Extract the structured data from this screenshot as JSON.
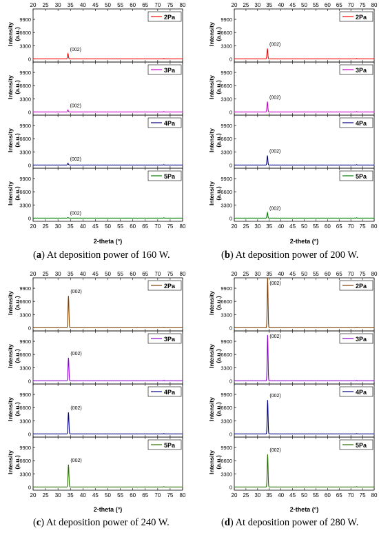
{
  "captions": [
    {
      "letter": "a",
      "text": "At deposition power of 160 W."
    },
    {
      "letter": "b",
      "text": "At deposition power of 200 W."
    },
    {
      "letter": "c",
      "text": "At deposition power of 240 W."
    },
    {
      "letter": "d",
      "text": "At deposition power of 280 W."
    }
  ],
  "chart_data": [
    {
      "type": "line",
      "id": "a",
      "xlabel": "2-theta (°)",
      "ylabel": "Intensity (a.u.)",
      "xlim": [
        20,
        80
      ],
      "ylim": [
        -800,
        12500
      ],
      "xticks": [
        20,
        25,
        30,
        35,
        40,
        45,
        50,
        55,
        60,
        65,
        70,
        75,
        80
      ],
      "yticks": [
        0,
        3300,
        6600,
        9900
      ],
      "peak_position": 34.0,
      "annotation": "(002)",
      "series": [
        {
          "name": "2Pa",
          "color": "#ff0000",
          "peak_height": 1300
        },
        {
          "name": "3Pa",
          "color": "#cc00cc",
          "peak_height": 500
        },
        {
          "name": "4Pa",
          "color": "#00007f",
          "peak_height": 450
        },
        {
          "name": "5Pa",
          "color": "#008000",
          "peak_height": 150
        }
      ]
    },
    {
      "type": "line",
      "id": "b",
      "xlabel": "2-theta (°)",
      "ylabel": "Intensity (a.u.)",
      "xlim": [
        20,
        80
      ],
      "ylim": [
        -800,
        12500
      ],
      "xticks": [
        20,
        25,
        30,
        35,
        40,
        45,
        50,
        55,
        60,
        65,
        70,
        75,
        80
      ],
      "yticks": [
        0,
        3300,
        6600,
        9900
      ],
      "peak_position": 34.2,
      "annotation": "(002)",
      "series": [
        {
          "name": "2Pa",
          "color": "#ff0000",
          "peak_height": 2600
        },
        {
          "name": "3Pa",
          "color": "#cc00cc",
          "peak_height": 2600
        },
        {
          "name": "4Pa",
          "color": "#00007f",
          "peak_height": 2400
        },
        {
          "name": "5Pa",
          "color": "#008000",
          "peak_height": 1400
        }
      ]
    },
    {
      "type": "line",
      "id": "c",
      "xlabel": "2-theta (°)",
      "ylabel": "Intensity (a.u.)",
      "xlim": [
        20,
        80
      ],
      "ylim": [
        -800,
        12500
      ],
      "xticks": [
        20,
        25,
        30,
        35,
        40,
        45,
        50,
        55,
        60,
        65,
        70,
        75,
        80
      ],
      "yticks": [
        0,
        3300,
        6600,
        9900
      ],
      "peak_position": 34.2,
      "annotation": "(002)",
      "series": [
        {
          "name": "2Pa",
          "color": "#7f3f00",
          "peak_height": 8000
        },
        {
          "name": "3Pa",
          "color": "#8800cc",
          "peak_height": 5800
        },
        {
          "name": "4Pa",
          "color": "#00007f",
          "peak_height": 5400
        },
        {
          "name": "5Pa",
          "color": "#2a6e00",
          "peak_height": 5600
        }
      ]
    },
    {
      "type": "line",
      "id": "d",
      "xlabel": "2-theta (°)",
      "ylabel": "Intensity (a.u.)",
      "xlim": [
        20,
        80
      ],
      "ylim": [
        -800,
        12500
      ],
      "xticks": [
        20,
        25,
        30,
        35,
        40,
        45,
        50,
        55,
        60,
        65,
        70,
        75,
        80
      ],
      "yticks": [
        0,
        3300,
        6600,
        9900
      ],
      "peak_position": 34.3,
      "annotation": "(002)",
      "series": [
        {
          "name": "2Pa",
          "color": "#7f3f00",
          "peak_height": 12500
        },
        {
          "name": "3Pa",
          "color": "#8800cc",
          "peak_height": 11500
        },
        {
          "name": "4Pa",
          "color": "#00007f",
          "peak_height": 8500
        },
        {
          "name": "5Pa",
          "color": "#2a6e00",
          "peak_height": 8200
        }
      ]
    }
  ]
}
